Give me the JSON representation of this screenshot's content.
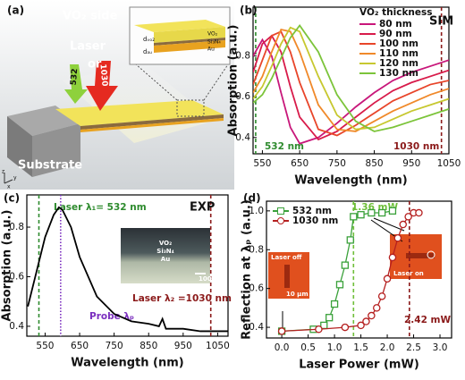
{
  "diagram": {
    "label": "(a)",
    "side": "VO₂ side",
    "laser": "Laser",
    "green": "532",
    "or": "or",
    "red": "1030",
    "substrate": "Substrate",
    "d_vo2": "dᵥₒ₂",
    "vo2": "VO₂",
    "sin": "Si₃N₄",
    "au": "Au",
    "d_au": "dₐᵤ",
    "ax_x": "x",
    "ax_y": "y",
    "ax_z": "z"
  },
  "chart_data": [
    {
      "type": "line",
      "label": "(b)",
      "tag": "SIM",
      "xlabel": "Wavelength (nm)",
      "ylabel": "Absorption (a.u.)",
      "legend_title": "VO₂ thickness",
      "x": [
        525,
        550,
        575,
        600,
        625,
        650,
        700,
        750,
        800,
        850,
        900,
        950,
        1000,
        1050
      ],
      "series": [
        {
          "name": "80 nm",
          "color": "#c8177a",
          "values": [
            0.8,
            0.88,
            0.8,
            0.62,
            0.45,
            0.37,
            0.4,
            0.47,
            0.55,
            0.62,
            0.68,
            0.72,
            0.75,
            0.78
          ]
        },
        {
          "name": "90 nm",
          "color": "#d81b4a",
          "values": [
            0.72,
            0.86,
            0.9,
            0.82,
            0.65,
            0.5,
            0.39,
            0.43,
            0.5,
            0.57,
            0.63,
            0.67,
            0.7,
            0.73
          ]
        },
        {
          "name": "100 nm",
          "color": "#e8452a",
          "values": [
            0.66,
            0.78,
            0.9,
            0.92,
            0.82,
            0.67,
            0.44,
            0.41,
            0.46,
            0.52,
            0.58,
            0.62,
            0.66,
            0.68
          ]
        },
        {
          "name": "110 nm",
          "color": "#f0892a",
          "values": [
            0.62,
            0.7,
            0.82,
            0.93,
            0.92,
            0.82,
            0.56,
            0.44,
            0.43,
            0.48,
            0.53,
            0.57,
            0.61,
            0.64
          ]
        },
        {
          "name": "120 nm",
          "color": "#c7c830",
          "values": [
            0.59,
            0.65,
            0.75,
            0.86,
            0.94,
            0.92,
            0.7,
            0.51,
            0.44,
            0.45,
            0.49,
            0.53,
            0.56,
            0.59
          ]
        },
        {
          "name": "130 nm",
          "color": "#7cc43a",
          "values": [
            0.57,
            0.61,
            0.69,
            0.79,
            0.89,
            0.95,
            0.82,
            0.61,
            0.48,
            0.43,
            0.45,
            0.48,
            0.51,
            0.54
          ]
        }
      ],
      "xlim": [
        525,
        1050
      ],
      "ylim": [
        0.32,
        1.04
      ],
      "xticks": [
        550,
        650,
        750,
        850,
        950,
        1050
      ],
      "yticks": [
        0.4,
        0.6,
        0.8
      ],
      "vlines": [
        {
          "x": 532,
          "color": "#2e8b2e",
          "dash": "dashed",
          "label": "532 nm"
        },
        {
          "x": 1030,
          "color": "#8b1a1a",
          "dash": "dashed",
          "label": "1030 nm"
        }
      ]
    },
    {
      "type": "line",
      "label": "(c)",
      "tag": "EXP",
      "xlabel": "Wavelength (nm)",
      "ylabel": "Absorption (a.u.)",
      "color": "#000000",
      "x": [
        500,
        525,
        550,
        575,
        590,
        600,
        625,
        650,
        700,
        750,
        800,
        850,
        880,
        890,
        900,
        950,
        1000,
        1050,
        1080
      ],
      "values": [
        0.48,
        0.62,
        0.76,
        0.85,
        0.88,
        0.87,
        0.8,
        0.68,
        0.52,
        0.45,
        0.42,
        0.41,
        0.4,
        0.43,
        0.39,
        0.39,
        0.38,
        0.38,
        0.38
      ],
      "xlim": [
        497,
        1080
      ],
      "ylim": [
        0.36,
        0.93
      ],
      "xticks": [
        550,
        650,
        750,
        850,
        950,
        1050
      ],
      "yticks": [
        0.4,
        0.6,
        0.8
      ],
      "vlines": [
        {
          "x": 532,
          "color": "#2e8b2e",
          "dash": "dashed",
          "label": "Laser λ₁= 532 nm"
        },
        {
          "x": 1030,
          "color": "#8b1a1a",
          "dash": "dashed",
          "label": "Laser λ₂ =1030 nm"
        },
        {
          "x": 595,
          "color": "#7b2fbf",
          "dash": "dotted",
          "label": "Probe λₚ"
        }
      ],
      "inset_labels": [
        "VO₂",
        "Si₃N₄",
        "Au",
        "100 nm"
      ]
    },
    {
      "type": "line",
      "label": "(d)",
      "xlabel": "Laser Power (mW)",
      "ylabel": "Reflection at λₚ (a.u.)",
      "series": [
        {
          "name": "532 nm",
          "color": "#3aa13a",
          "marker": "square",
          "x": [
            0,
            0.6,
            0.8,
            0.9,
            1.0,
            1.1,
            1.2,
            1.3,
            1.36,
            1.5,
            1.7,
            1.9,
            2.1
          ],
          "values": [
            0.38,
            0.39,
            0.41,
            0.45,
            0.52,
            0.62,
            0.72,
            0.85,
            0.97,
            0.98,
            0.99,
            0.99,
            1.0
          ]
        },
        {
          "name": "1030 nm",
          "color": "#b52020",
          "marker": "circle",
          "x": [
            0,
            0.7,
            1.2,
            1.5,
            1.6,
            1.7,
            1.8,
            1.9,
            2.0,
            2.1,
            2.2,
            2.3,
            2.4,
            2.5,
            2.6
          ],
          "values": [
            0.38,
            0.39,
            0.4,
            0.41,
            0.43,
            0.46,
            0.5,
            0.56,
            0.65,
            0.76,
            0.86,
            0.93,
            0.97,
            0.99,
            0.99
          ]
        }
      ],
      "xlim": [
        -0.29,
        3.22
      ],
      "ylim": [
        0.345,
        1.05
      ],
      "xticks": [
        {
          "value": 0,
          "label": "0.0"
        },
        0.5,
        {
          "value": 1,
          "label": "1.0"
        },
        1.5,
        {
          "value": 2,
          "label": "2.0"
        },
        2.5,
        {
          "value": 3,
          "label": "3.0"
        }
      ],
      "yticks": [
        0.4,
        0.6,
        0.8,
        {
          "value": 1,
          "label": "1.0"
        }
      ],
      "vlines": [
        {
          "x": 1.36,
          "color": "#6fbf3a",
          "dash": "dashed",
          "label": "1.36 mW"
        },
        {
          "x": 2.42,
          "color": "#8b1a1a",
          "dash": "dashed",
          "label": "2.42 mW"
        }
      ],
      "inset_labels": [
        "Laser off",
        "10 µm",
        "Laser on"
      ]
    }
  ]
}
